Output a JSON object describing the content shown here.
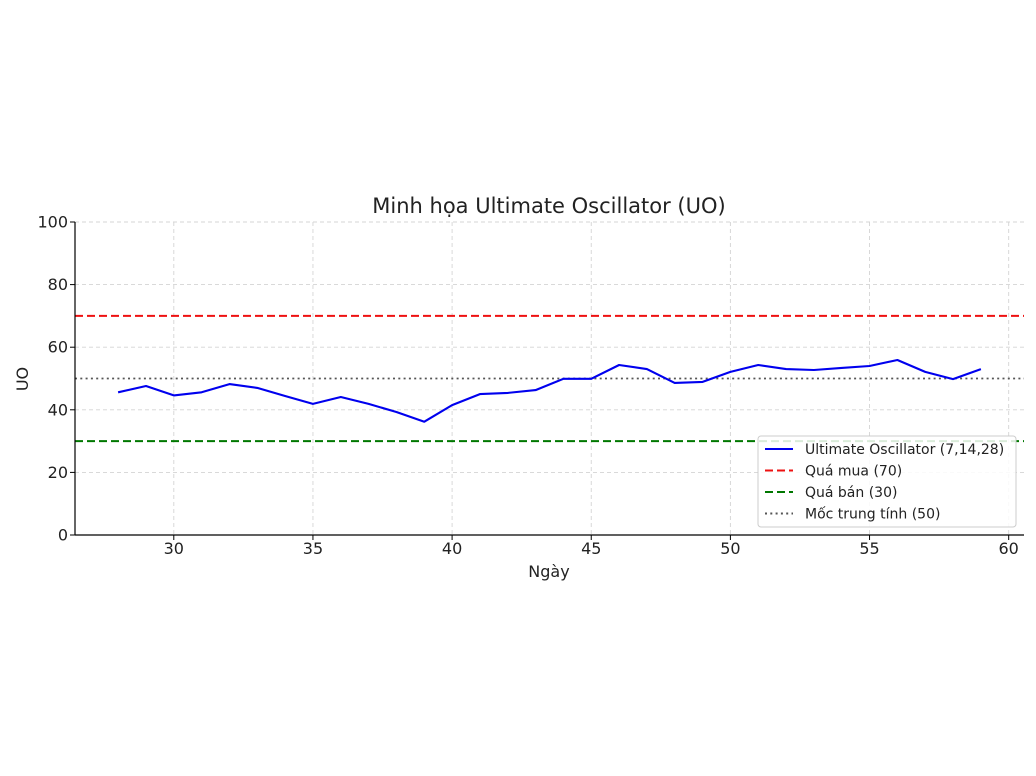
{
  "chart_data": {
    "type": "line",
    "title": "Minh họa Ultimate Oscillator (UO)",
    "xlabel": "Ngày",
    "ylabel": "UO",
    "xlim": [
      26.45,
      60.55
    ],
    "ylim": [
      0,
      100
    ],
    "xticks": [
      30,
      35,
      40,
      45,
      50,
      55,
      60
    ],
    "yticks": [
      0,
      20,
      40,
      60,
      80,
      100
    ],
    "grid": true,
    "legend_position": "lower right",
    "x": [
      28,
      29,
      30,
      31,
      32,
      33,
      34,
      35,
      36,
      37,
      38,
      39,
      40,
      41,
      42,
      43,
      44,
      45,
      46,
      47,
      48,
      49,
      50,
      51,
      52,
      53,
      54,
      55,
      56,
      57,
      58,
      59
    ],
    "series": [
      {
        "name": "Ultimate Oscillator (7,14,28)",
        "color": "#0000ee",
        "style": "solid",
        "values": [
          45.6,
          47.6,
          44.6,
          45.6,
          48.2,
          47.0,
          44.4,
          41.9,
          44.1,
          41.9,
          39.3,
          36.2,
          41.5,
          45.0,
          45.4,
          46.3,
          49.9,
          49.9,
          54.3,
          53.0,
          48.6,
          48.9,
          52.1,
          54.3,
          53.0,
          52.7,
          53.4,
          54.0,
          55.9,
          52.1,
          49.8,
          53.0
        ]
      }
    ],
    "reference_lines": [
      {
        "name": "Quá mua (70)",
        "y": 70,
        "color": "#ee1111",
        "style": "dashed"
      },
      {
        "name": "Quá bán (30)",
        "y": 30,
        "color": "#007700",
        "style": "dashed"
      },
      {
        "name": "Mốc trung tính (50)",
        "y": 50,
        "color": "#555555",
        "style": "dotted"
      }
    ]
  }
}
